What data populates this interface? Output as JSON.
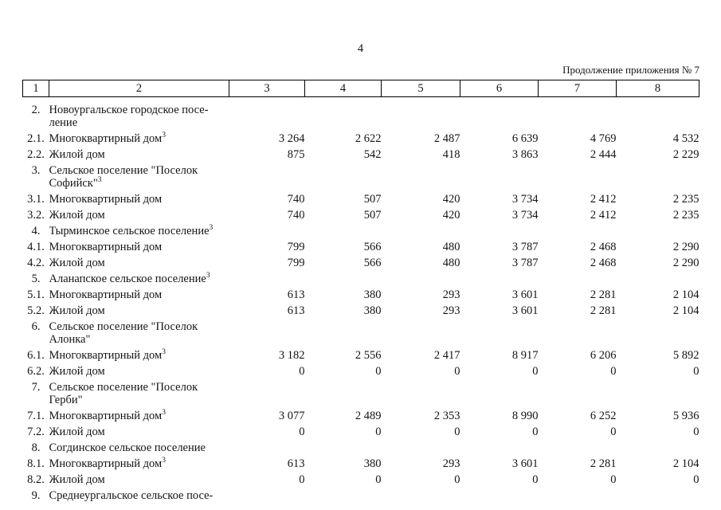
{
  "page": {
    "number": "4",
    "continuation": "Продолжение приложения № 7"
  },
  "table": {
    "column_numbers": [
      "1",
      "2",
      "3",
      "4",
      "5",
      "6",
      "7",
      "8"
    ],
    "rows": [
      {
        "num": "2.",
        "label_lines": [
          "Новоургальское городское посе-",
          "ление"
        ],
        "footnote_ref": "",
        "values": []
      },
      {
        "num": "2.1.",
        "label_lines": [
          "Многоквартирный дом"
        ],
        "footnote_ref": "3",
        "values": [
          "3 264",
          "2 622",
          "2 487",
          "6 639",
          "4 769",
          "4 532"
        ]
      },
      {
        "num": "2.2.",
        "label_lines": [
          "Жилой дом"
        ],
        "footnote_ref": "",
        "values": [
          "875",
          "542",
          "418",
          "3 863",
          "2 444",
          "2 229"
        ]
      },
      {
        "num": "3.",
        "label_lines": [
          "Сельское поселение \"Поселок",
          "Софийск\""
        ],
        "footnote_ref": "3",
        "values": []
      },
      {
        "num": "3.1.",
        "label_lines": [
          "Многоквартирный дом"
        ],
        "footnote_ref": "",
        "values": [
          "740",
          "507",
          "420",
          "3 734",
          "2 412",
          "2 235"
        ]
      },
      {
        "num": "3.2.",
        "label_lines": [
          "Жилой дом"
        ],
        "footnote_ref": "",
        "values": [
          "740",
          "507",
          "420",
          "3 734",
          "2 412",
          "2 235"
        ]
      },
      {
        "num": "4.",
        "label_lines": [
          "Тырминское сельское поселение"
        ],
        "footnote_ref": "3",
        "values": []
      },
      {
        "num": "4.1.",
        "label_lines": [
          "Многоквартирный дом"
        ],
        "footnote_ref": "",
        "values": [
          "799",
          "566",
          "480",
          "3 787",
          "2 468",
          "2 290"
        ]
      },
      {
        "num": "4.2.",
        "label_lines": [
          "Жилой дом"
        ],
        "footnote_ref": "",
        "values": [
          "799",
          "566",
          "480",
          "3 787",
          "2 468",
          "2 290"
        ]
      },
      {
        "num": "5.",
        "label_lines": [
          "Аланапское сельское поселение"
        ],
        "footnote_ref": "3",
        "values": []
      },
      {
        "num": "5.1.",
        "label_lines": [
          "Многоквартирный дом"
        ],
        "footnote_ref": "",
        "values": [
          "613",
          "380",
          "293",
          "3 601",
          "2 281",
          "2 104"
        ]
      },
      {
        "num": "5.2.",
        "label_lines": [
          "Жилой дом"
        ],
        "footnote_ref": "",
        "values": [
          "613",
          "380",
          "293",
          "3 601",
          "2 281",
          "2 104"
        ]
      },
      {
        "num": "6.",
        "label_lines": [
          "Сельское поселение \"Поселок",
          "Алонка\""
        ],
        "footnote_ref": "",
        "values": []
      },
      {
        "num": "6.1.",
        "label_lines": [
          "Многоквартирный дом"
        ],
        "footnote_ref": "3",
        "values": [
          "3 182",
          "2 556",
          "2 417",
          "8 917",
          "6 206",
          "5 892"
        ]
      },
      {
        "num": "6.2.",
        "label_lines": [
          "Жилой дом"
        ],
        "footnote_ref": "",
        "values": [
          "0",
          "0",
          "0",
          "0",
          "0",
          "0"
        ]
      },
      {
        "num": "7.",
        "label_lines": [
          "Сельское поселение \"Поселок",
          "Герби\""
        ],
        "footnote_ref": "",
        "values": []
      },
      {
        "num": "7.1.",
        "label_lines": [
          "Многоквартирный дом"
        ],
        "footnote_ref": "3",
        "values": [
          "3 077",
          "2 489",
          "2 353",
          "8 990",
          "6 252",
          "5 936"
        ]
      },
      {
        "num": "7.2.",
        "label_lines": [
          "Жилой дом"
        ],
        "footnote_ref": "",
        "values": [
          "0",
          "0",
          "0",
          "0",
          "0",
          "0"
        ]
      },
      {
        "num": "8.",
        "label_lines": [
          "Согдинское сельское поселение"
        ],
        "footnote_ref": "",
        "values": []
      },
      {
        "num": "8.1.",
        "label_lines": [
          "Многоквартирный дом"
        ],
        "footnote_ref": "3",
        "values": [
          "613",
          "380",
          "293",
          "3 601",
          "2 281",
          "2 104"
        ]
      },
      {
        "num": "8.2.",
        "label_lines": [
          "Жилой дом"
        ],
        "footnote_ref": "",
        "values": [
          "0",
          "0",
          "0",
          "0",
          "0",
          "0"
        ]
      },
      {
        "num": "9.",
        "label_lines": [
          "Среднеургальское сельское посе-"
        ],
        "footnote_ref": "",
        "values": []
      }
    ]
  }
}
